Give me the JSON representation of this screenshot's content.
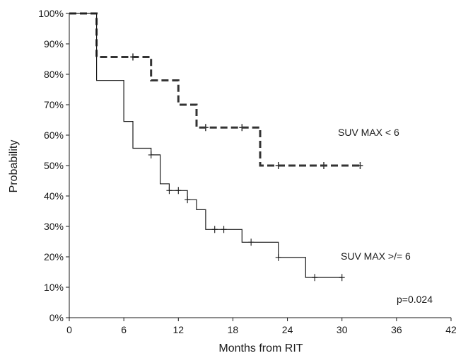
{
  "chart_data": {
    "type": "line",
    "step": true,
    "xlabel": "Months from RIT",
    "ylabel": "Probability",
    "xlim": [
      0,
      42
    ],
    "ylim": [
      0,
      1
    ],
    "xticks": [
      0,
      6,
      12,
      18,
      24,
      30,
      36,
      42
    ],
    "yticks": [
      0,
      0.1,
      0.2,
      0.3,
      0.4,
      0.5,
      0.6,
      0.7,
      0.8,
      0.9,
      1.0
    ],
    "ytick_labels": [
      "0%",
      "10%",
      "20%",
      "30%",
      "40%",
      "50%",
      "60%",
      "70%",
      "80%",
      "90%",
      "100%"
    ],
    "grid": false,
    "legend": "none",
    "annotations": [
      {
        "text": "SUV MAX < 6",
        "series": 0
      },
      {
        "text": "SUV MAX >/= 6",
        "series": 1
      },
      {
        "text": "p=0.024"
      }
    ],
    "series": [
      {
        "name": "SUV MAX < 6",
        "line_style": "dashed",
        "color": "#333333",
        "x": [
          0,
          3,
          3,
          9,
          9,
          12,
          12,
          14,
          14,
          21,
          21,
          32
        ],
        "y": [
          1.0,
          1.0,
          0.857,
          0.857,
          0.78,
          0.78,
          0.7,
          0.7,
          0.625,
          0.625,
          0.5,
          0.5
        ],
        "censored": [
          {
            "x": 7,
            "y": 0.857
          },
          {
            "x": 15,
            "y": 0.625
          },
          {
            "x": 19,
            "y": 0.625
          },
          {
            "x": 23,
            "y": 0.5
          },
          {
            "x": 28,
            "y": 0.5
          },
          {
            "x": 32,
            "y": 0.5
          }
        ]
      },
      {
        "name": "SUV MAX >/= 6",
        "line_style": "solid",
        "color": "#1a1a1a",
        "x": [
          0,
          3,
          3,
          6,
          6,
          7,
          7,
          9,
          9,
          10,
          10,
          11,
          11,
          13,
          13,
          14,
          14,
          15,
          15,
          19,
          19,
          23,
          23,
          26,
          26,
          30
        ],
        "y": [
          1.0,
          1.0,
          0.78,
          0.78,
          0.645,
          0.645,
          0.557,
          0.557,
          0.535,
          0.535,
          0.44,
          0.44,
          0.418,
          0.418,
          0.388,
          0.388,
          0.355,
          0.355,
          0.29,
          0.29,
          0.248,
          0.248,
          0.198,
          0.198,
          0.132,
          0.132
        ],
        "censored": [
          {
            "x": 9,
            "y": 0.535
          },
          {
            "x": 11,
            "y": 0.418
          },
          {
            "x": 12,
            "y": 0.418
          },
          {
            "x": 13,
            "y": 0.388
          },
          {
            "x": 16,
            "y": 0.29
          },
          {
            "x": 17,
            "y": 0.29
          },
          {
            "x": 20,
            "y": 0.248
          },
          {
            "x": 23,
            "y": 0.198
          },
          {
            "x": 27,
            "y": 0.132
          },
          {
            "x": 30,
            "y": 0.132
          }
        ]
      }
    ]
  }
}
